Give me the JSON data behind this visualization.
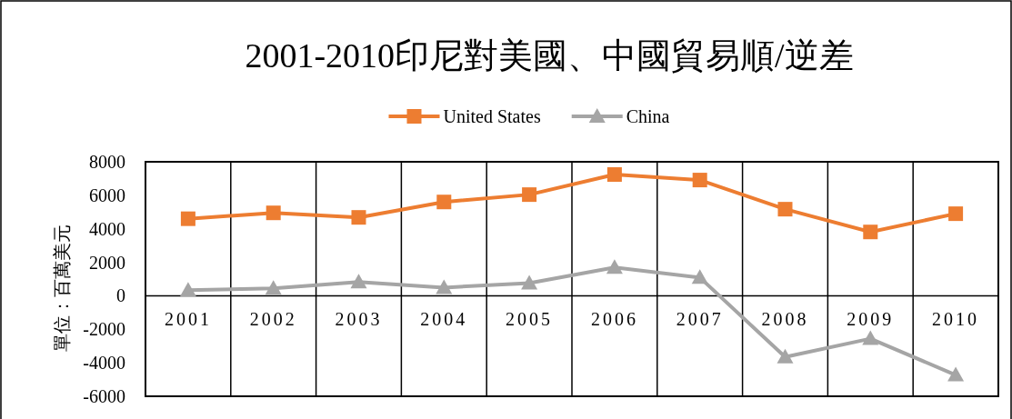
{
  "chart_data": {
    "type": "line",
    "title": "2001-2010印尼對美國、中國貿易順/逆差",
    "ylabel": "單位：百萬美元",
    "categories": [
      "2001",
      "2002",
      "2003",
      "2004",
      "2005",
      "2006",
      "2007",
      "2008",
      "2009",
      "2010"
    ],
    "series": [
      {
        "name": "United States",
        "color": "#ed7d31",
        "marker": "square",
        "values": [
          4600,
          4950,
          4680,
          5600,
          6040,
          7240,
          6910,
          5170,
          3810,
          4900
        ]
      },
      {
        "name": "China",
        "color": "#a5a5a5",
        "marker": "triangle",
        "values": [
          330,
          440,
          820,
          490,
          760,
          1690,
          1090,
          -3650,
          -2560,
          -4730
        ]
      }
    ],
    "ylim": [
      -6000,
      8000
    ],
    "yticks": [
      -6000,
      -4000,
      -2000,
      0,
      2000,
      4000,
      6000,
      8000
    ],
    "grid": "x",
    "legend": "top"
  }
}
